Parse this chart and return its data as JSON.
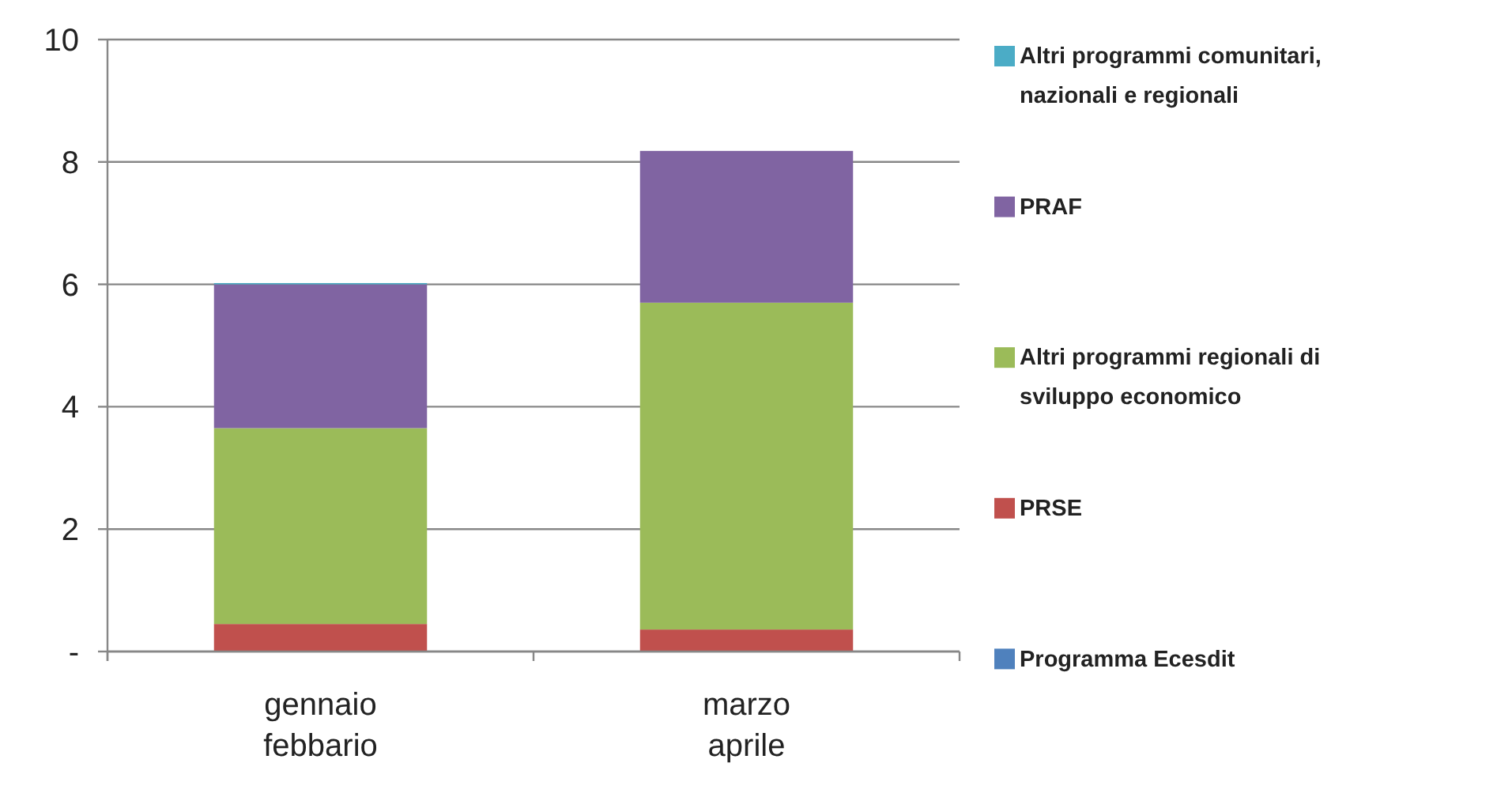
{
  "chart_data": {
    "type": "bar",
    "stacked": true,
    "categories": [
      "gennaio febbario",
      "marzo aprile"
    ],
    "series": [
      {
        "name": "Programma Ecesdit",
        "color": "#4f81bd",
        "values": [
          0,
          0
        ]
      },
      {
        "name": "PRSE",
        "color": "#c0504d",
        "values": [
          0.45,
          0.36
        ]
      },
      {
        "name": "Altri programmi regionali di sviluppo economico",
        "color": "#9bbb59",
        "values": [
          3.2,
          5.34
        ]
      },
      {
        "name": "PRAF",
        "color": "#8064a2",
        "values": [
          2.35,
          2.48
        ]
      },
      {
        "name": "Altri programmi comunitari, nazionali e regionali",
        "color": "#4bacc6",
        "values": [
          0.02,
          0
        ]
      }
    ],
    "ylim": [
      0,
      10
    ],
    "yticks": [
      {
        "value": 0,
        "label": "-"
      },
      2,
      4,
      6,
      8,
      10
    ],
    "grid": "y",
    "legend": "right"
  }
}
